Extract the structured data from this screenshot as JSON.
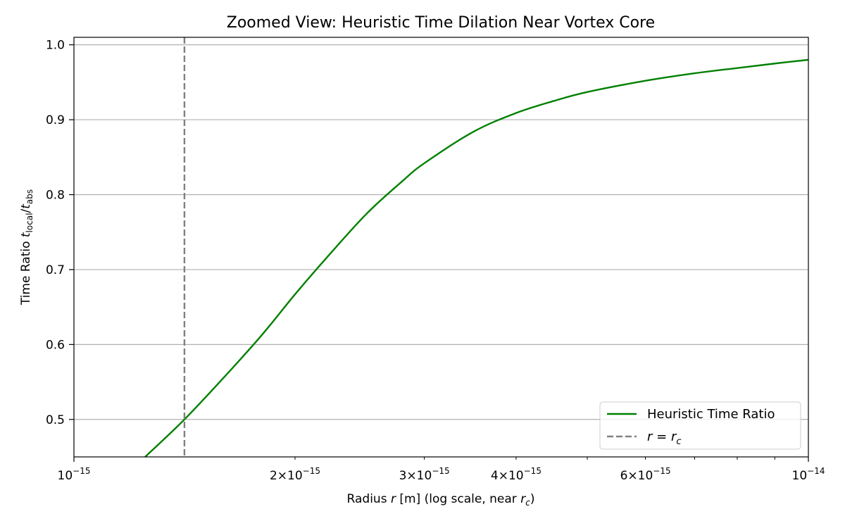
{
  "chart_data": {
    "type": "line",
    "title": "Zoomed View: Heuristic Time Dilation Near Vortex Core",
    "xlabel": {
      "prefix": "Radius ",
      "var": "r",
      "middle": " [m] (log scale, near ",
      "sub_var": "r",
      "sub": "c",
      "suffix": ")"
    },
    "ylabel": {
      "prefix": "Time Ratio ",
      "num_var": "t",
      "num_sub": "local",
      "slash": "/",
      "den_var": "t",
      "den_sub": "abs"
    },
    "x_scale": "log",
    "xlim": [
      1e-15,
      1e-14
    ],
    "ylim": [
      0.45,
      1.01
    ],
    "grid": "y-only",
    "x_major_ticks": [
      {
        "value": 1e-15,
        "mantissa": "",
        "base": "10",
        "exp": "−15"
      },
      {
        "value": 1e-14,
        "mantissa": "",
        "base": "10",
        "exp": "−14"
      }
    ],
    "x_minor_ticks": [
      {
        "value": 2e-15,
        "mantissa": "2×",
        "base": "10",
        "exp": "−15"
      },
      {
        "value": 3e-15,
        "mantissa": "3×",
        "base": "10",
        "exp": "−15"
      },
      {
        "value": 4e-15,
        "mantissa": "4×",
        "base": "10",
        "exp": "−15"
      },
      {
        "value": 5e-15,
        "mantissa": "",
        "base": "",
        "exp": ""
      },
      {
        "value": 6e-15,
        "mantissa": "6×",
        "base": "10",
        "exp": "−15"
      },
      {
        "value": 7e-15,
        "mantissa": "",
        "base": "",
        "exp": ""
      },
      {
        "value": 8e-15,
        "mantissa": "",
        "base": "",
        "exp": ""
      },
      {
        "value": 9e-15,
        "mantissa": "",
        "base": "",
        "exp": ""
      }
    ],
    "y_ticks": [
      {
        "value": 0.5,
        "label": "0.5"
      },
      {
        "value": 0.6,
        "label": "0.6"
      },
      {
        "value": 0.7,
        "label": "0.7"
      },
      {
        "value": 0.8,
        "label": "0.8"
      },
      {
        "value": 0.9,
        "label": "0.9"
      },
      {
        "value": 1.0,
        "label": "1.0"
      }
    ],
    "series": [
      {
        "name": "Heuristic Time Ratio",
        "color": "#008000",
        "style": "solid",
        "x": [
          1.25e-15,
          1.414e-15,
          1.6e-15,
          1.8e-15,
          2e-15,
          2.2e-15,
          2.5e-15,
          2.8e-15,
          3e-15,
          3.5e-15,
          4e-15,
          4.5e-15,
          5e-15,
          6e-15,
          7e-15,
          8e-15,
          9e-15,
          1e-14
        ],
        "y": [
          0.45,
          0.5,
          0.556,
          0.612,
          0.667,
          0.714,
          0.774,
          0.818,
          0.842,
          0.884,
          0.909,
          0.925,
          0.937,
          0.952,
          0.962,
          0.969,
          0.975,
          0.98
        ]
      },
      {
        "name": "r = r_c",
        "label_parts": {
          "var": "r",
          "eq": " = ",
          "sub_var": "r",
          "sub": "c"
        },
        "color": "#808080",
        "style": "dashed",
        "x_const": 1.414e-15
      }
    ],
    "legend_position": "lower-right"
  }
}
